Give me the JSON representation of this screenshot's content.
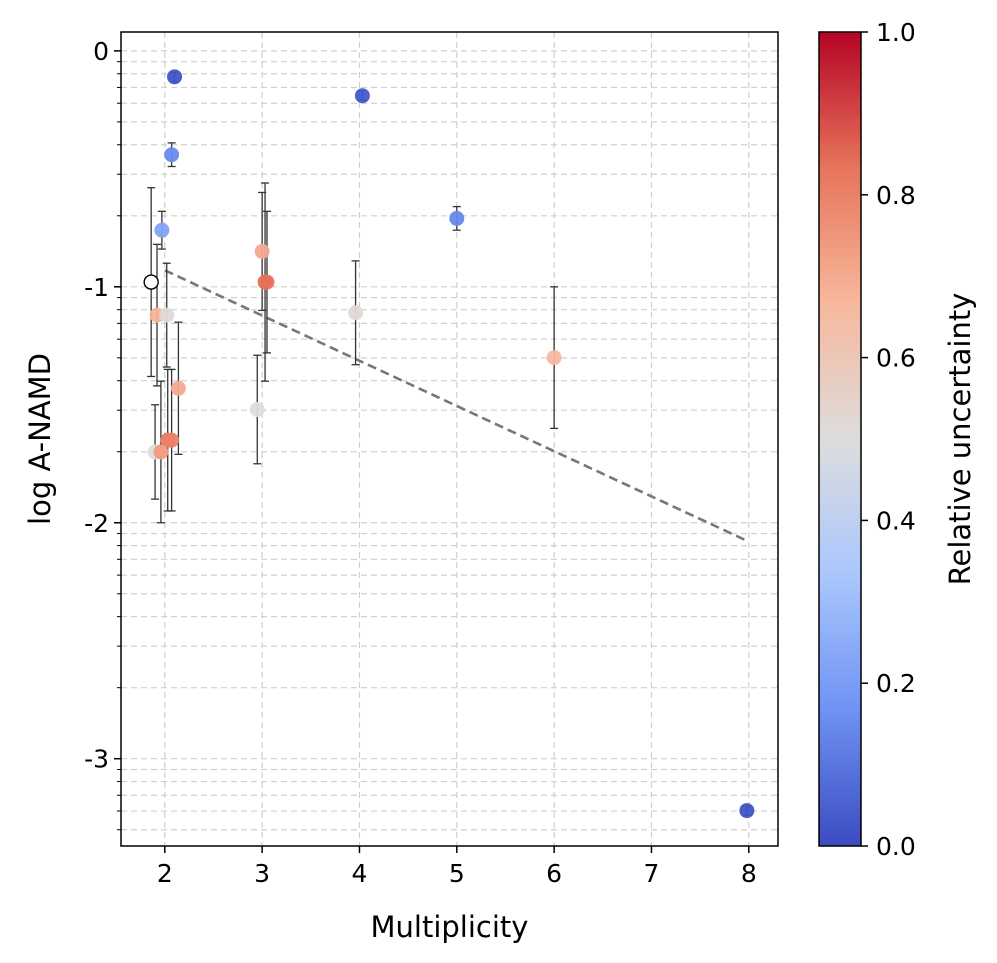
{
  "chart_data": {
    "type": "scatter",
    "xlabel": "Multiplicity",
    "ylabel": "log A-NAMD",
    "xlim": [
      1.55,
      8.3
    ],
    "ylim": [
      -3.37,
      0.08
    ],
    "xticks": [
      2,
      3,
      4,
      5,
      6,
      7,
      8
    ],
    "xtick_labels": [
      "2",
      "3",
      "4",
      "5",
      "6",
      "7",
      "8"
    ],
    "yticks": [
      0,
      -1,
      -2,
      -3
    ],
    "ytick_labels": [
      "0",
      "-1",
      "-2",
      "-3"
    ],
    "grid": true,
    "colorbar": {
      "label": "Relative uncertainty",
      "range": [
        0.0,
        1.0
      ],
      "ticks": [
        0.0,
        0.2,
        0.4,
        0.6,
        0.8,
        1.0
      ],
      "tick_labels": [
        "0.0",
        "0.2",
        "0.4",
        "0.6",
        "0.8",
        "1.0"
      ],
      "colormap": "coolwarm",
      "colors": [
        "#3b4cc0",
        "#6f92f3",
        "#aac7fd",
        "#dddddd",
        "#f7b89c",
        "#e7745b",
        "#b40426"
      ]
    },
    "points": [
      {
        "x": 2.1,
        "y": -0.11,
        "err": 0.02,
        "u": 0.02
      },
      {
        "x": 4.03,
        "y": -0.19,
        "err": 0.02,
        "u": 0.03
      },
      {
        "x": 2.07,
        "y": -0.44,
        "err": 0.05,
        "u": 0.15
      },
      {
        "x": 5.0,
        "y": -0.71,
        "err": 0.05,
        "u": 0.14
      },
      {
        "x": 1.97,
        "y": -0.76,
        "err": 0.08,
        "u": 0.22
      },
      {
        "x": 3.0,
        "y": -0.85,
        "err": 0.25,
        "u": 0.7
      },
      {
        "x": 3.05,
        "y": -0.98,
        "err": 0.3,
        "u": 0.82
      },
      {
        "x": 3.03,
        "y": -0.98,
        "err": 0.42,
        "u": 0.84
      },
      {
        "x": 1.92,
        "y": -1.12,
        "err": 0.3,
        "u": 0.68
      },
      {
        "x": 2.02,
        "y": -1.12,
        "err": 0.22,
        "u": 0.52
      },
      {
        "x": 3.96,
        "y": -1.11,
        "err": 0.22,
        "u": 0.52
      },
      {
        "x": 6.0,
        "y": -1.3,
        "err": 0.3,
        "u": 0.66
      },
      {
        "x": 2.14,
        "y": -1.43,
        "err": 0.28,
        "u": 0.7
      },
      {
        "x": 2.95,
        "y": -1.52,
        "err": 0.23,
        "u": 0.5
      },
      {
        "x": 2.03,
        "y": -1.65,
        "err": 0.3,
        "u": 0.82
      },
      {
        "x": 2.07,
        "y": -1.65,
        "err": 0.3,
        "u": 0.8
      },
      {
        "x": 1.9,
        "y": -1.7,
        "err": 0.2,
        "u": 0.5
      },
      {
        "x": 1.96,
        "y": -1.7,
        "err": 0.3,
        "u": 0.74
      },
      {
        "x": 7.98,
        "y": -3.22,
        "err": 0.02,
        "u": 0.02
      }
    ],
    "open_point": {
      "x": 1.86,
      "y": -0.98,
      "err": 0.4
    },
    "trend_line": {
      "x": [
        2.0,
        8.0
      ],
      "y": [
        -0.93,
        -2.08
      ]
    }
  }
}
